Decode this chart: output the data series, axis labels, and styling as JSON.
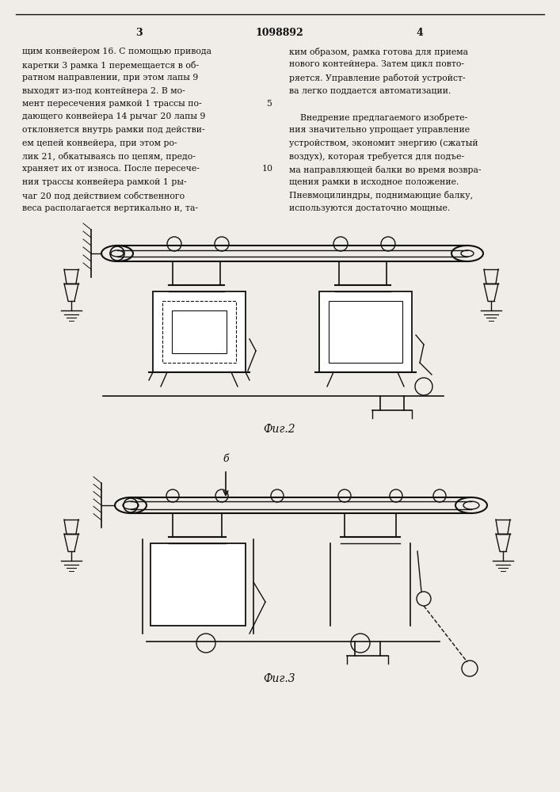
{
  "page_width": 7.07,
  "page_height": 10.0,
  "bg_color": "#f0ede8",
  "text_color": "#111111",
  "line_color": "#111111",
  "header": {
    "left_num": "3",
    "center_num": "1098892",
    "right_num": "4"
  },
  "left_col_text": [
    "щим конвейером 16. С помощью привода",
    "каретки 3 рамка 1 перемещается в об-",
    "ратном направлении, при этом лапы 9",
    "выходят из-под контейнера 2. В мо-",
    "мент пересечения рамкой 1 трассы по-",
    "дающего конвейера 14 рычаг 20 лапы 9",
    "отклоняется внутрь рамки под действи-",
    "ем цепей конвейера, при этом ро-",
    "лик 21, обкатываясь по цепям, предо-",
    "храняет их от износа. После пересече-",
    "ния трассы конвейера рамкой 1 ры-",
    "чаг 20 под действием собственного",
    "веса располагается вертикально и, та-"
  ],
  "right_col_text": [
    "ким образом, рамка готова для приема",
    "нового контейнера. Затем цикл повто-",
    "ряется. Управление работой устройст-",
    "ва легко поддается автоматизации.",
    "",
    "    Внедрение предлагаемого изобрете-",
    "ния значительно упрощает управление",
    "устройством, экономит энергию (сжатый",
    "воздух), которая требуется для подъе-",
    "ма направляющей балки во время возвра-",
    "щения рамки в исходное положение.",
    "Пневмоцилиндры, поднимающие балку,",
    "используются достаточно мощные."
  ],
  "fig2_label": "Фиг.2",
  "fig3_label": "Фиг.3"
}
